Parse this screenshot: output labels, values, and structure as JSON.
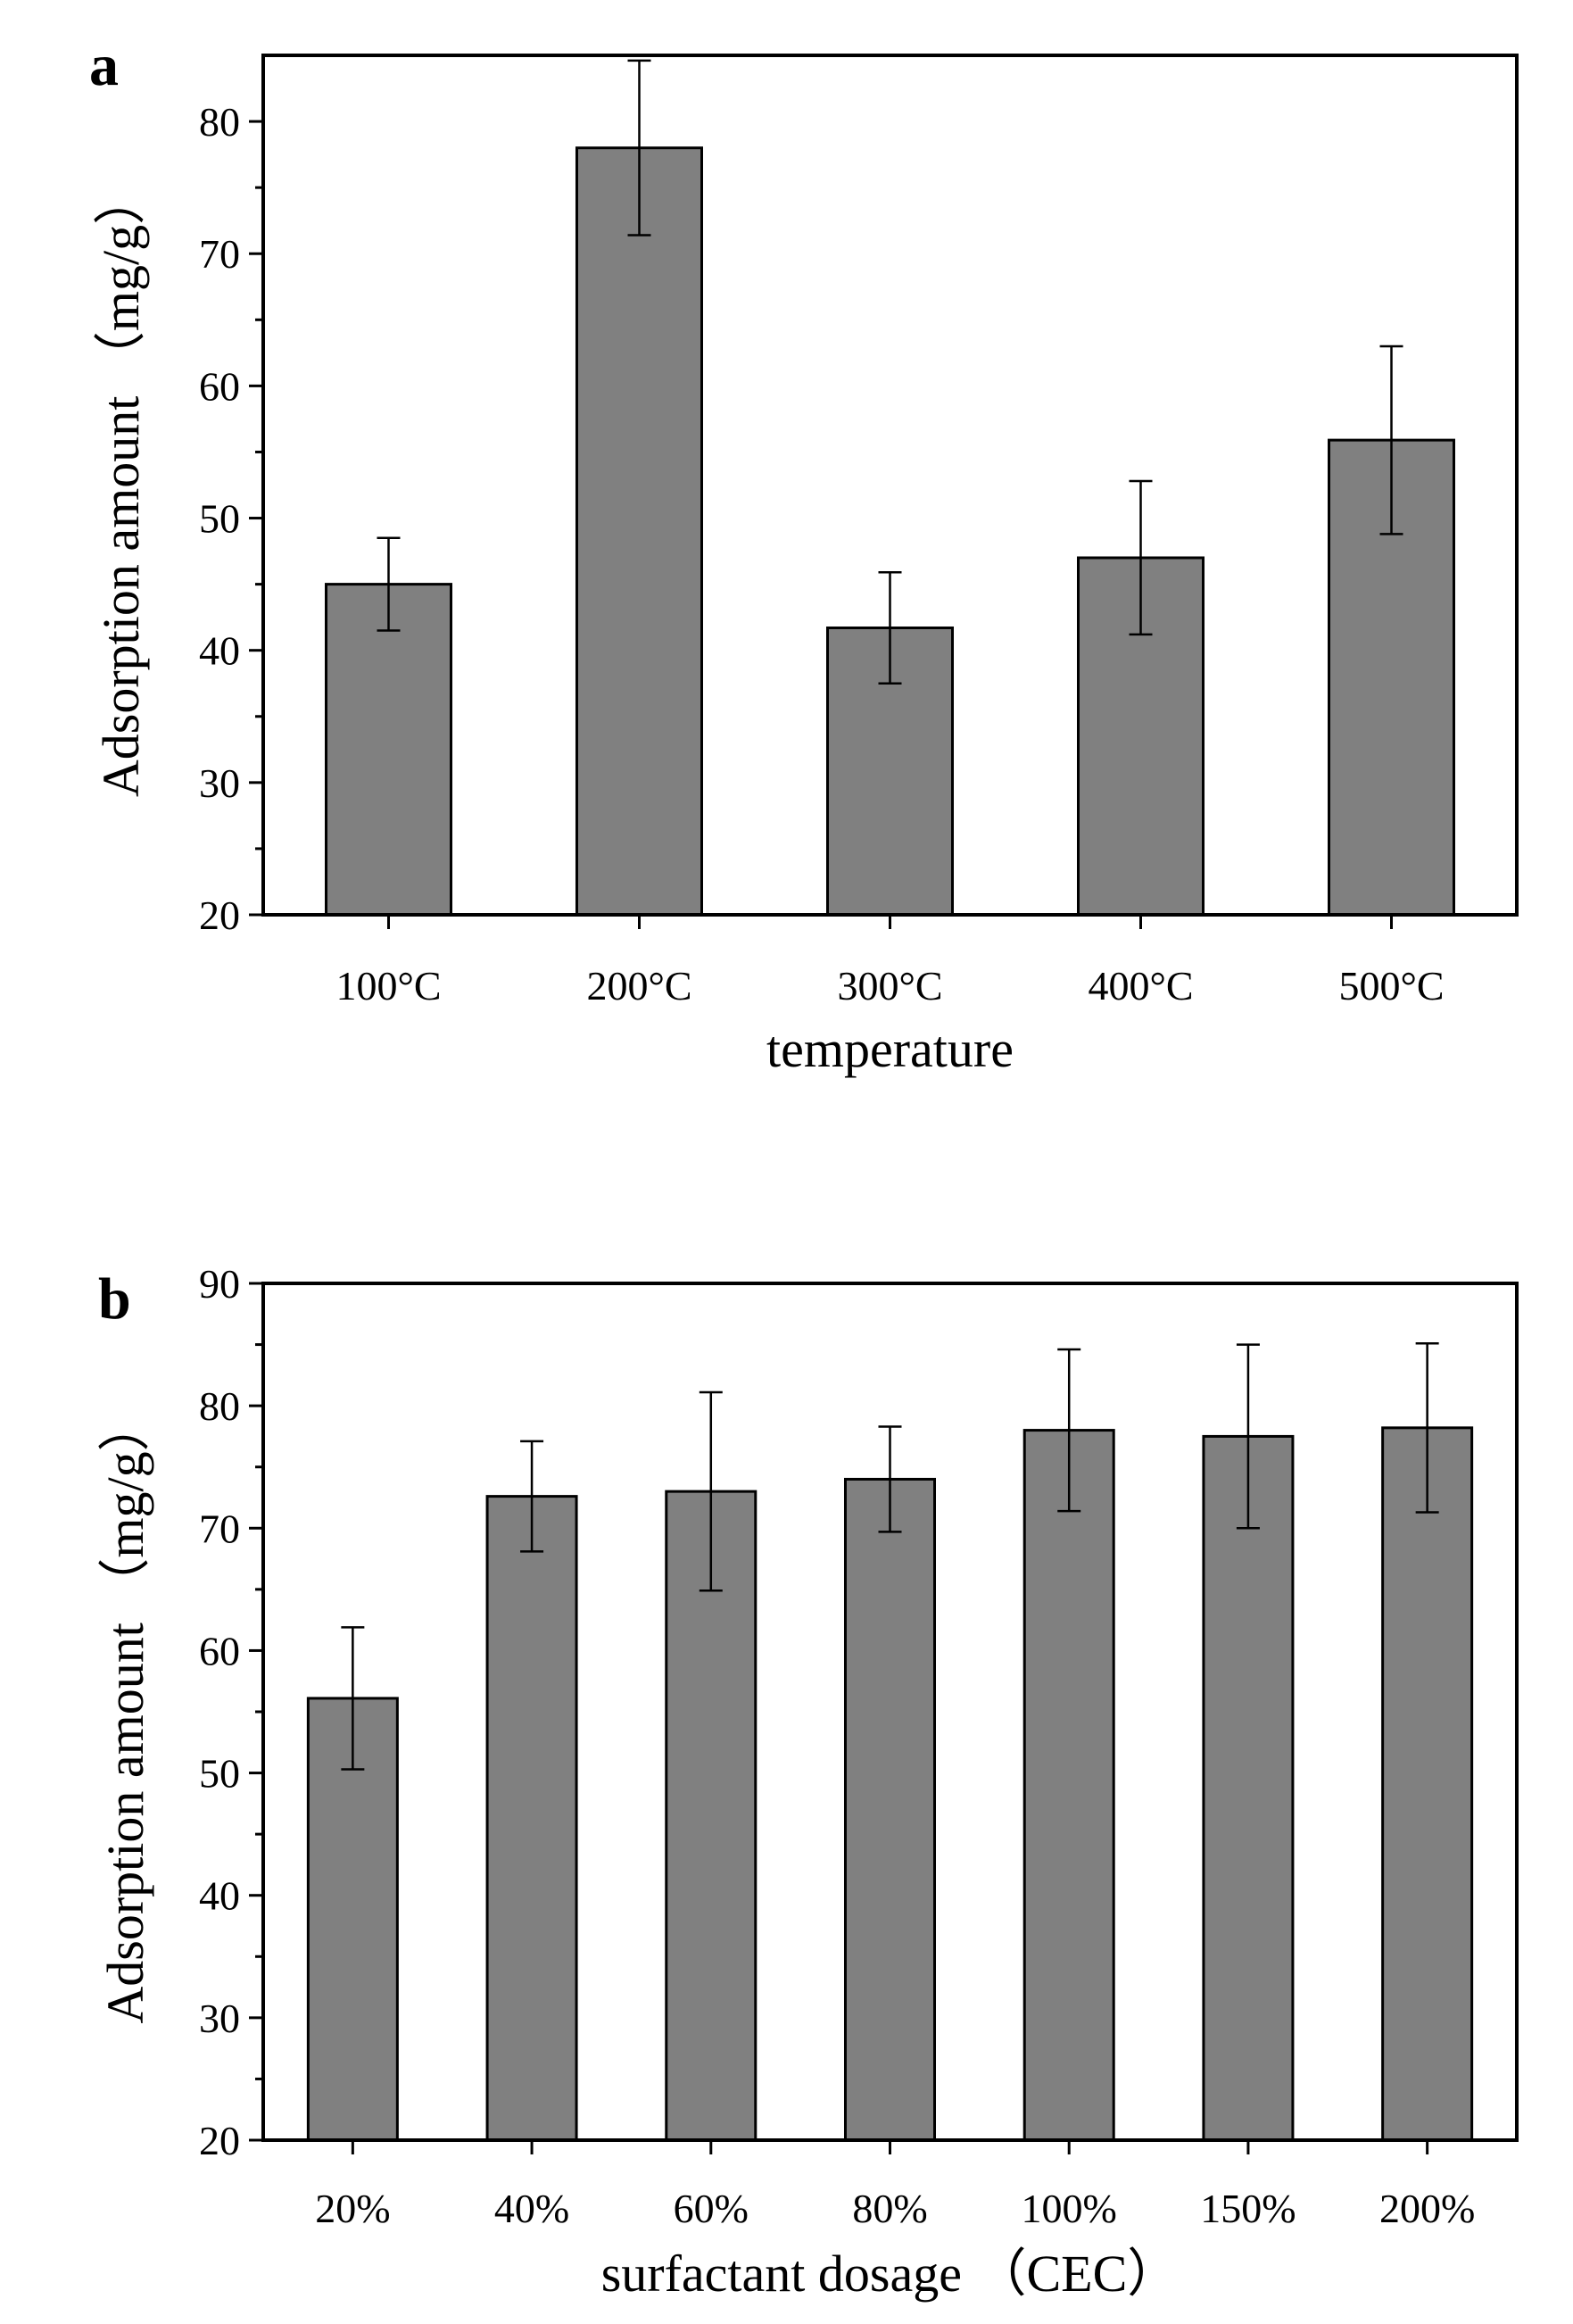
{
  "chart_data": [
    {
      "type": "bar",
      "panel_label": "a",
      "categories": [
        "100°C",
        "200°C",
        "300°C",
        "400°C",
        "500°C"
      ],
      "values": [
        45,
        78,
        41.7,
        47,
        55.9
      ],
      "errors": [
        3.5,
        6.6,
        4.2,
        5.8,
        7.1
      ],
      "xlabel": "temperature",
      "ylabel": "Adsorption amount （mg/g）",
      "ylim": [
        20,
        85
      ],
      "yticks": [
        20,
        30,
        40,
        50,
        60,
        70,
        80
      ],
      "y_minor_step": 5,
      "bar_color": "#808080"
    },
    {
      "type": "bar",
      "panel_label": "b",
      "categories": [
        "20%",
        "40%",
        "60%",
        "80%",
        "100%",
        "150%",
        "200%"
      ],
      "values": [
        56.1,
        72.6,
        73,
        74,
        78,
        77.5,
        78.2
      ],
      "errors": [
        5.8,
        4.5,
        8.1,
        4.3,
        6.6,
        7.5,
        6.9
      ],
      "xlabel": "surfactant dosage （CEC）",
      "ylabel": "Adsorption amount （mg/g）",
      "ylim": [
        20,
        90
      ],
      "yticks": [
        20,
        30,
        40,
        50,
        60,
        70,
        80,
        90
      ],
      "y_minor_step": 5,
      "bar_color": "#808080"
    }
  ]
}
